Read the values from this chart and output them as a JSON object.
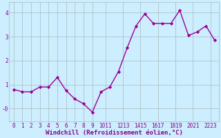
{
  "x": [
    0,
    1,
    2,
    3,
    4,
    5,
    6,
    7,
    8,
    9,
    10,
    11,
    12,
    13,
    14,
    15,
    16,
    17,
    18,
    19,
    20,
    21,
    22,
    23
  ],
  "y": [
    0.8,
    0.7,
    0.7,
    0.9,
    0.9,
    1.3,
    0.75,
    0.4,
    0.2,
    -0.15,
    0.7,
    0.9,
    1.55,
    2.55,
    3.45,
    3.95,
    3.55,
    3.55,
    3.55,
    4.1,
    3.05,
    3.2,
    3.45,
    2.85
  ],
  "line_color": "#990099",
  "marker": "D",
  "markersize": 2.2,
  "linewidth": 1.0,
  "bg_color": "#cceeff",
  "grid_color": "#aabbbb",
  "xlabel": "Windchill (Refroidissement éolien,°C)",
  "xlabel_color": "#880088",
  "xlabel_fontsize": 6.5,
  "tick_color": "#880088",
  "tick_fontsize": 5.5,
  "xtick_labels": [
    "0",
    "1",
    "2",
    "3",
    "4",
    "5",
    "6",
    "7",
    "8",
    "9",
    "1011",
    "1213",
    "1415",
    "1617",
    "1819",
    "2021",
    "2223"
  ],
  "ylim": [
    -0.55,
    4.45
  ],
  "xlim": [
    -0.5,
    23.5
  ]
}
